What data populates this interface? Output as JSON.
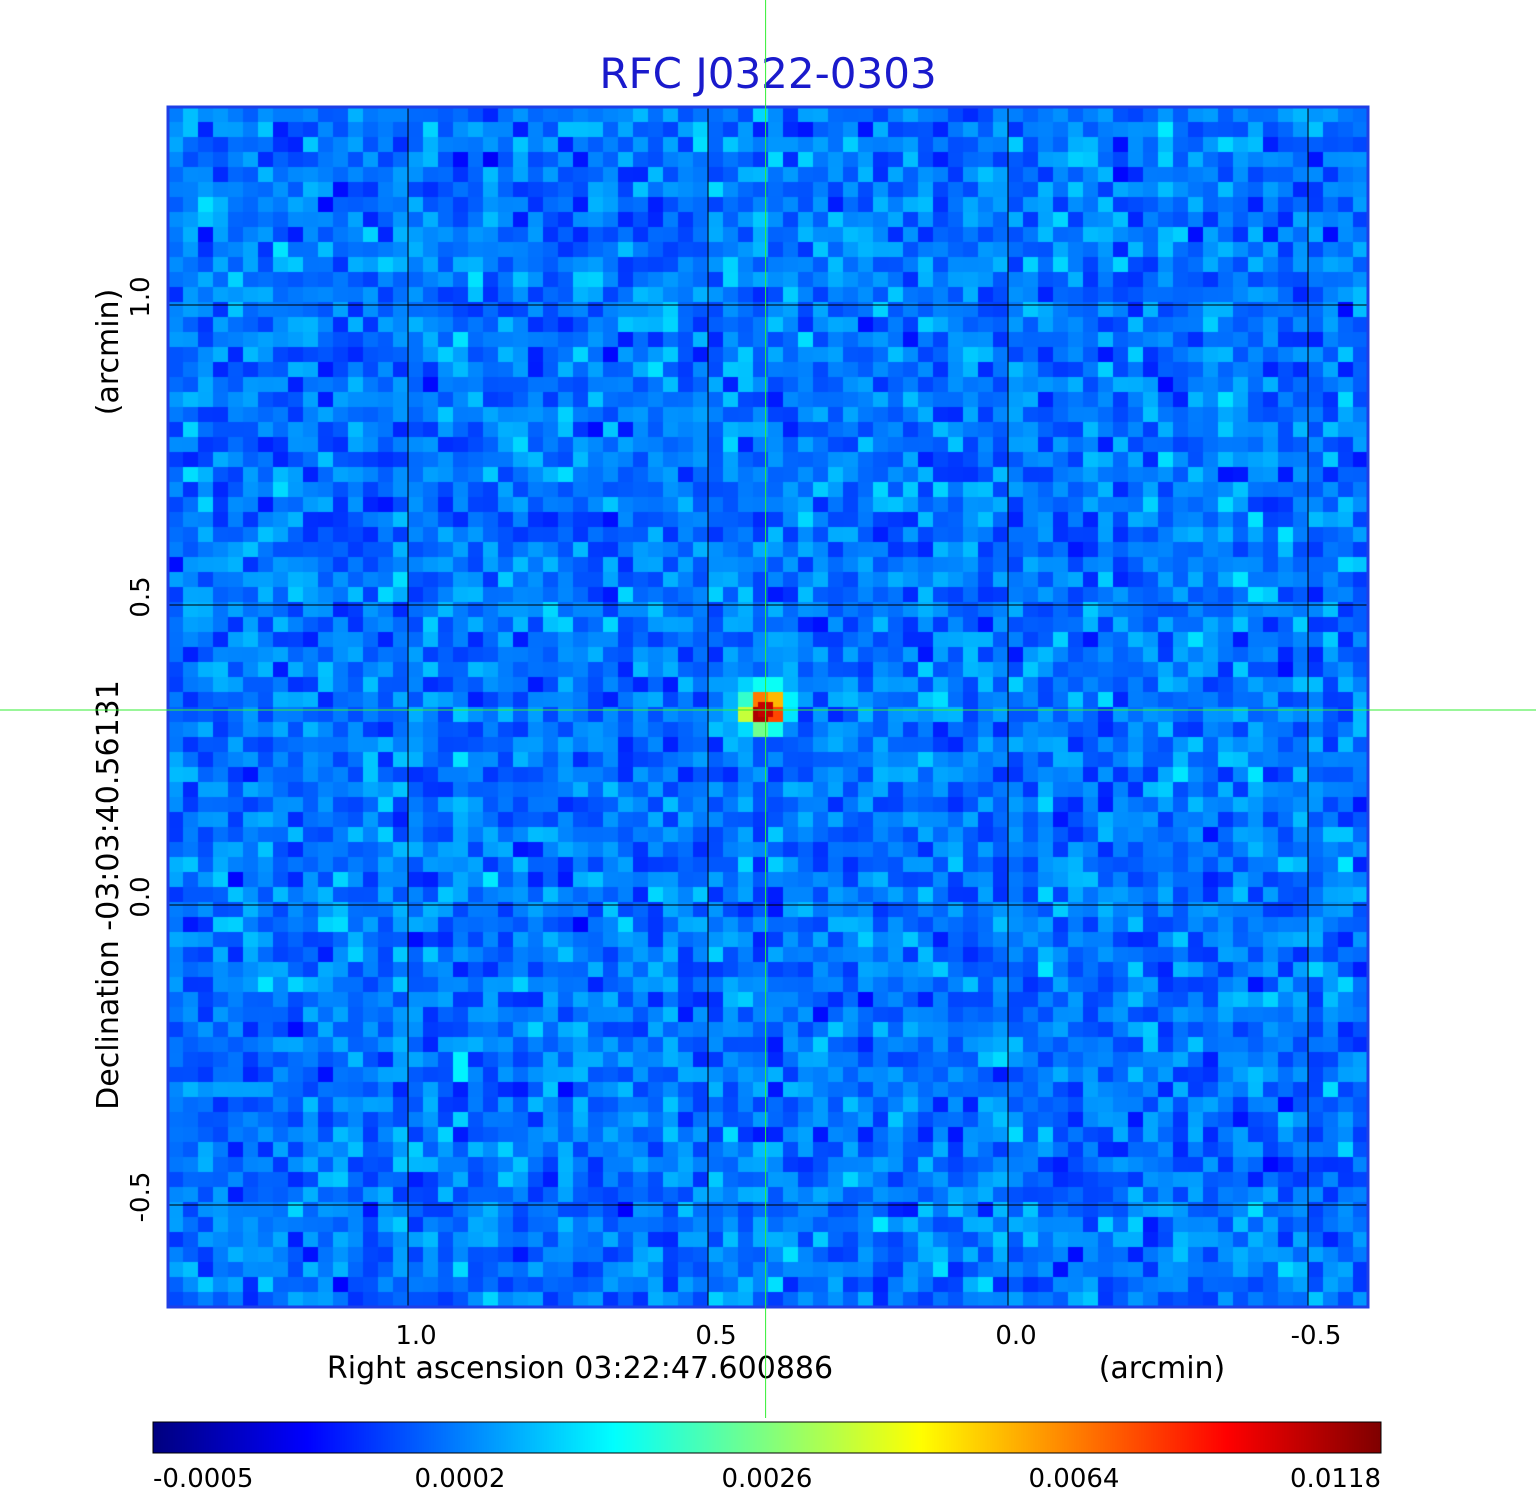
{
  "chart_data": {
    "type": "heatmap",
    "title": "RFC J0322-0303",
    "xlabel": "Right ascension  03:22:47.600886",
    "xunit": "(arcmin)",
    "ylabel": "Declination  -03:03:40.56131",
    "yunit": "(arcmin)",
    "x_ticks": [
      {
        "value": 1.0,
        "label": "1.0"
      },
      {
        "value": 0.5,
        "label": "0.5"
      },
      {
        "value": 0.0,
        "label": "0.0"
      },
      {
        "value": -0.5,
        "label": "-0.5"
      }
    ],
    "y_ticks": [
      {
        "value": 1.0,
        "label": "1.0"
      },
      {
        "value": 0.5,
        "label": "0.5"
      },
      {
        "value": 0.0,
        "label": "0.0"
      },
      {
        "value": -0.5,
        "label": "-0.5"
      }
    ],
    "xlim": [
      1.4,
      -0.6
    ],
    "ylim": [
      -0.67,
      1.33
    ],
    "x_reversed": true,
    "grid": true,
    "crosshair": {
      "x": 0.404,
      "y": 0.325
    },
    "peak": {
      "x": 0.404,
      "y": 0.325,
      "value": 0.0118
    },
    "background_level": 0.0,
    "colormap": "jet",
    "colorbar_ticks": [
      "-0.0005",
      "0.0002",
      "0.0026",
      "0.0064",
      "0.0118"
    ],
    "colors": {
      "title": "#1a1acc",
      "frame": "#1f3fe6",
      "grid": "#000000",
      "crosshair": "#33ee33",
      "peak": "#c40000",
      "background": "#2f74f2"
    }
  }
}
